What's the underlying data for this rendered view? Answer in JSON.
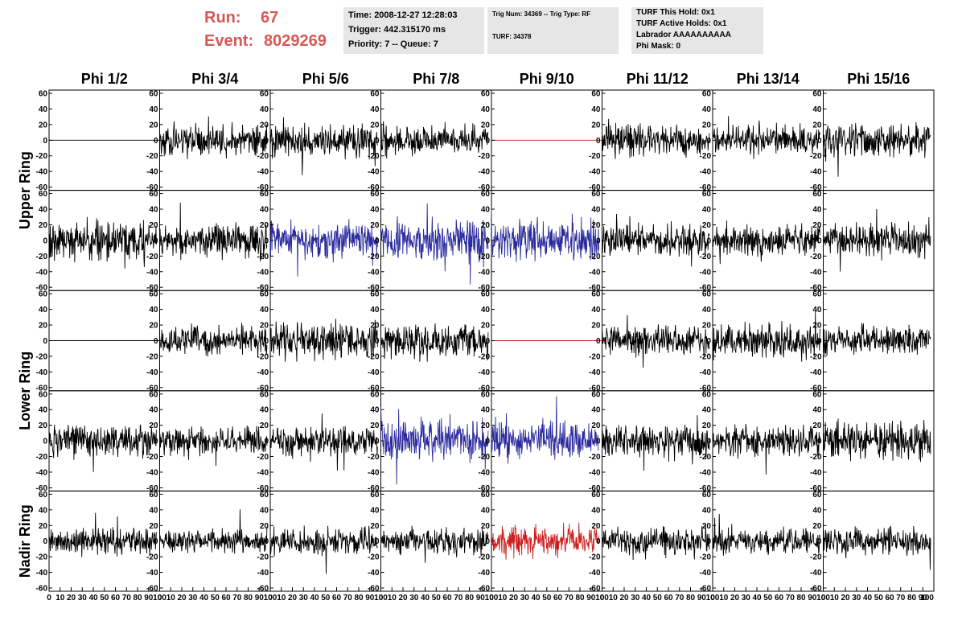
{
  "header": {
    "run_label": "Run:",
    "run_value": "67",
    "event_label": "Event:",
    "event_value": "8029269",
    "time_box": [
      "Time: 2008-12-27 12:28:03",
      "Trigger: 442.315170 ms",
      "Priority: 7 -- Queue: 7"
    ],
    "trig_box": [
      "Trig Num: 34369 -- Trig Type: RF",
      "TURF: 34378"
    ],
    "turf_box": [
      "TURF This Hold: 0x1",
      "TURF Active Holds: 0x1",
      "Labrador AAAAAAAAAA",
      "Phi Mask: 0"
    ]
  },
  "colors": {
    "header_red": "#d45a55",
    "info_box_bg": "#e6e6e6",
    "trace_black": "#000000",
    "trace_blue": "#2b2b9e",
    "trace_red": "#cc2020"
  },
  "chart_data": {
    "type": "line",
    "title": "",
    "column_labels": [
      "Phi 1/2",
      "Phi 3/4",
      "Phi 5/6",
      "Phi 7/8",
      "Phi 9/10",
      "Phi 11/12",
      "Phi 13/14",
      "Phi 15/16"
    ],
    "row_labels": [
      "Upper Ring",
      "Lower Ring",
      "Nadir Ring"
    ],
    "row_label_spans": [
      [
        0,
        1
      ],
      [
        2,
        3
      ],
      [
        4
      ]
    ],
    "panel_rows": 5,
    "xlim": [
      0,
      100
    ],
    "ylim": [
      -60,
      60
    ],
    "x_tick_values": [
      0,
      10,
      20,
      30,
      40,
      50,
      60,
      70,
      80,
      90,
      100
    ],
    "y_tick_values": [
      60,
      40,
      20,
      0,
      -20,
      -40,
      -60
    ],
    "y_tick_labels": [
      "60",
      "40",
      "20",
      "0",
      "-20",
      "-40",
      "-60"
    ],
    "x_tick_labels": [
      "0",
      "10",
      "20",
      "30",
      "40",
      "50",
      "60",
      "70",
      "80",
      "90",
      "100"
    ],
    "samples_per_trace": 260,
    "panels": [
      [
        {
          "color": "black",
          "kind": "flat",
          "amp": 0
        },
        {
          "color": "black",
          "kind": "noise",
          "amp": 13
        },
        {
          "color": "black",
          "kind": "noise",
          "amp": 14
        },
        {
          "color": "black",
          "kind": "noise",
          "amp": 13
        },
        {
          "color": "red",
          "kind": "flat",
          "amp": 0
        },
        {
          "color": "black",
          "kind": "noise",
          "amp": 14
        },
        {
          "color": "black",
          "kind": "noise",
          "amp": 13
        },
        {
          "color": "black",
          "kind": "noise",
          "amp": 15
        }
      ],
      [
        {
          "color": "black",
          "kind": "noise",
          "amp": 16
        },
        {
          "color": "black",
          "kind": "noise",
          "amp": 15
        },
        {
          "color": "blue",
          "kind": "noise",
          "amp": 16
        },
        {
          "color": "blue",
          "kind": "noise",
          "amp": 18
        },
        {
          "color": "blue",
          "kind": "noise",
          "amp": 18
        },
        {
          "color": "black",
          "kind": "noise",
          "amp": 14
        },
        {
          "color": "black",
          "kind": "noise",
          "amp": 13
        },
        {
          "color": "black",
          "kind": "noise",
          "amp": 14
        }
      ],
      [
        {
          "color": "black",
          "kind": "flat",
          "amp": 0
        },
        {
          "color": "black",
          "kind": "noise",
          "amp": 12
        },
        {
          "color": "black",
          "kind": "noise",
          "amp": 15
        },
        {
          "color": "black",
          "kind": "noise",
          "amp": 14
        },
        {
          "color": "red",
          "kind": "flat",
          "amp": 0
        },
        {
          "color": "black",
          "kind": "noise",
          "amp": 13
        },
        {
          "color": "black",
          "kind": "noise",
          "amp": 15
        },
        {
          "color": "black",
          "kind": "noise",
          "amp": 13
        }
      ],
      [
        {
          "color": "black",
          "kind": "noise",
          "amp": 14
        },
        {
          "color": "black",
          "kind": "noise",
          "amp": 12
        },
        {
          "color": "black",
          "kind": "noise",
          "amp": 13
        },
        {
          "color": "blue",
          "kind": "noise",
          "amp": 18
        },
        {
          "color": "blue",
          "kind": "noise",
          "amp": 15
        },
        {
          "color": "black",
          "kind": "noise",
          "amp": 13
        },
        {
          "color": "black",
          "kind": "noise",
          "amp": 13
        },
        {
          "color": "black",
          "kind": "noise",
          "amp": 16
        }
      ],
      [
        {
          "color": "black",
          "kind": "noise",
          "amp": 12
        },
        {
          "color": "black",
          "kind": "noise",
          "amp": 10
        },
        {
          "color": "black",
          "kind": "noise",
          "amp": 11
        },
        {
          "color": "black",
          "kind": "noise",
          "amp": 11
        },
        {
          "color": "red",
          "kind": "noise",
          "amp": 12
        },
        {
          "color": "black",
          "kind": "noise",
          "amp": 12
        },
        {
          "color": "black",
          "kind": "noise",
          "amp": 11
        },
        {
          "color": "black",
          "kind": "noise",
          "amp": 12
        }
      ]
    ]
  }
}
